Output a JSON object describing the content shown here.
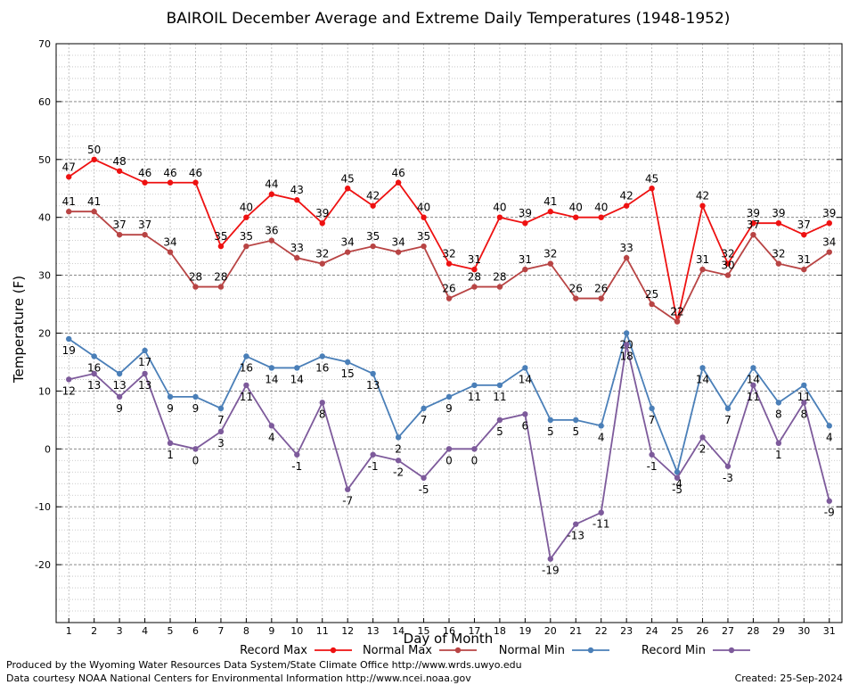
{
  "chart_data": {
    "type": "line",
    "title": "BAIROIL December Average and Extreme Daily Temperatures (1948-1952)",
    "xlabel": "Day of Month",
    "ylabel": "Temperature (F)",
    "ylim": [
      -30,
      70
    ],
    "xlim": [
      0.5,
      31.5
    ],
    "yticks": [
      -20,
      -10,
      0,
      10,
      20,
      30,
      40,
      50,
      60,
      70
    ],
    "grid": true,
    "legend_position": "bottom",
    "x": [
      1,
      2,
      3,
      4,
      5,
      6,
      7,
      8,
      9,
      10,
      11,
      12,
      13,
      14,
      15,
      16,
      17,
      18,
      19,
      20,
      21,
      22,
      23,
      24,
      25,
      26,
      27,
      28,
      29,
      30,
      31
    ],
    "series": [
      {
        "name": "Record Max",
        "color": "#ee1111",
        "label_pos": "above",
        "values": [
          47,
          50,
          48,
          46,
          46,
          46,
          35,
          40,
          44,
          43,
          39,
          45,
          42,
          46,
          40,
          32,
          31,
          40,
          39,
          41,
          40,
          40,
          42,
          45,
          22,
          42,
          32,
          39,
          39,
          37,
          39
        ]
      },
      {
        "name": "Normal Max",
        "color": "#b84444",
        "label_pos": "above",
        "values": [
          41,
          41,
          37,
          37,
          34,
          28,
          28,
          35,
          36,
          33,
          32,
          34,
          35,
          34,
          35,
          26,
          28,
          28,
          31,
          32,
          26,
          26,
          33,
          25,
          22,
          31,
          30,
          37,
          32,
          31,
          34
        ]
      },
      {
        "name": "Normal Min",
        "color": "#4a7fb8",
        "label_pos": "below",
        "values": [
          19,
          16,
          13,
          17,
          9,
          9,
          7,
          16,
          14,
          14,
          16,
          15,
          13,
          2,
          7,
          9,
          11,
          11,
          14,
          5,
          5,
          4,
          20,
          7,
          -4,
          14,
          7,
          14,
          8,
          11,
          4
        ]
      },
      {
        "name": "Record Min",
        "color": "#7d5a9b",
        "label_pos": "below",
        "values": [
          12,
          13,
          9,
          13,
          1,
          0,
          3,
          11,
          4,
          -1,
          8,
          -7,
          -1,
          -2,
          -5,
          0,
          0,
          5,
          6,
          -19,
          -13,
          -11,
          18,
          -1,
          -5,
          2,
          -3,
          11,
          1,
          8,
          -9
        ]
      }
    ]
  },
  "footer": {
    "line1": "Produced by the Wyoming Water Resources Data System/State Climate Office http://www.wrds.uwyo.edu",
    "line2": "Data courtesy NOAA National Centers for Environmental Information http://www.ncei.noaa.gov",
    "created": "Created:  25-Sep-2024"
  }
}
